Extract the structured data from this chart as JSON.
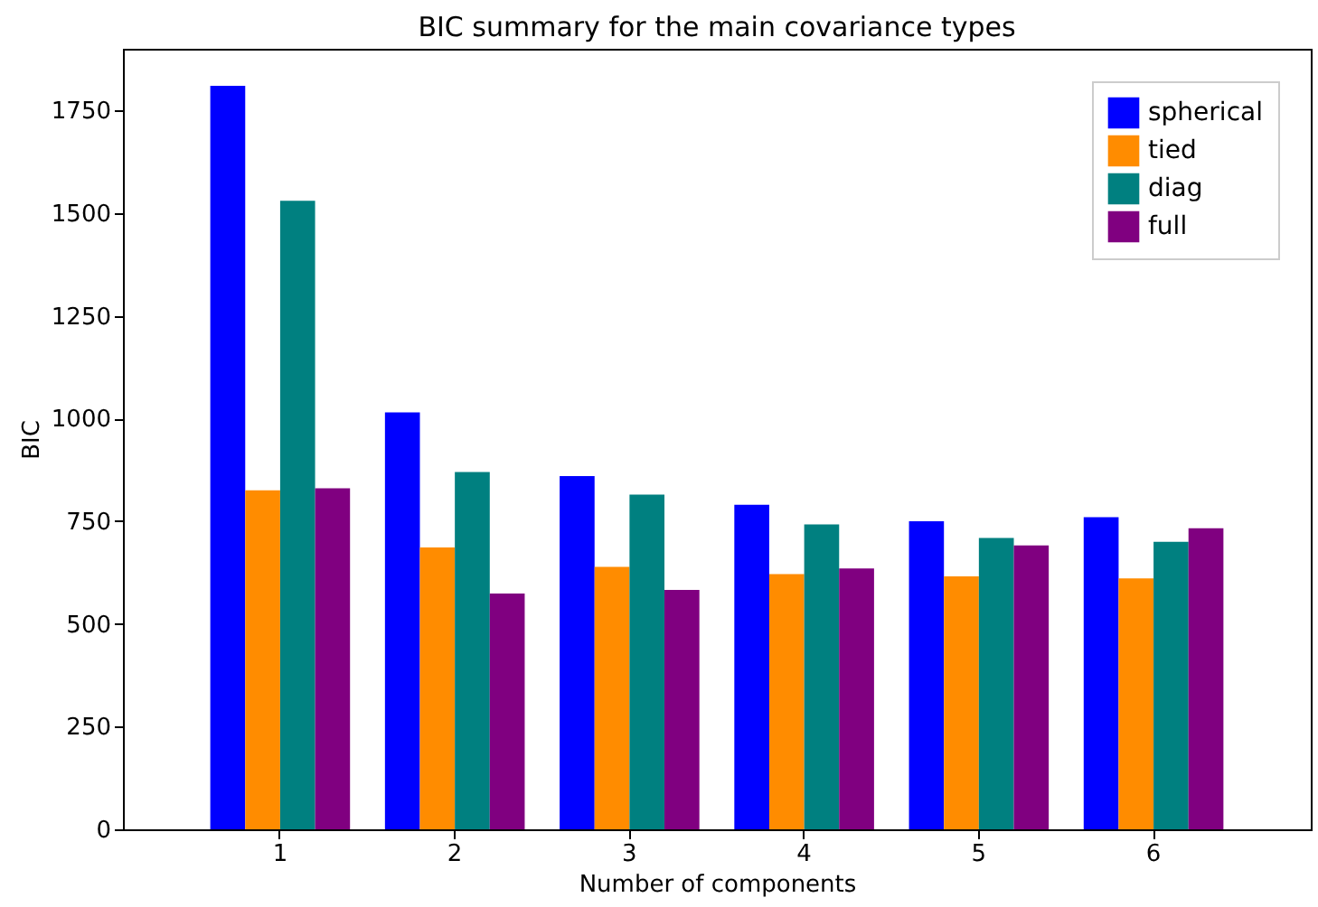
{
  "chart_data": {
    "type": "bar",
    "title": "BIC summary for the main covariance types",
    "xlabel": "Number of components",
    "ylabel": "BIC",
    "categories": [
      "1",
      "2",
      "3",
      "4",
      "5",
      "6"
    ],
    "series": [
      {
        "name": "spherical",
        "color": "#0000ff",
        "values": [
          1810,
          1015,
          860,
          790,
          750,
          760
        ]
      },
      {
        "name": "tied",
        "color": "#ff8c00",
        "values": [
          825,
          686,
          639,
          621,
          616,
          611
        ]
      },
      {
        "name": "diag",
        "color": "#008080",
        "values": [
          1530,
          870,
          815,
          742,
          709,
          700
        ]
      },
      {
        "name": "full",
        "color": "#800080",
        "values": [
          830,
          574,
          583,
          635,
          691,
          733
        ]
      }
    ],
    "ylim": [
      0,
      1900
    ],
    "yticks": [
      0,
      250,
      500,
      750,
      1000,
      1250,
      1500,
      1750
    ],
    "grid": false,
    "legend": "top right"
  }
}
